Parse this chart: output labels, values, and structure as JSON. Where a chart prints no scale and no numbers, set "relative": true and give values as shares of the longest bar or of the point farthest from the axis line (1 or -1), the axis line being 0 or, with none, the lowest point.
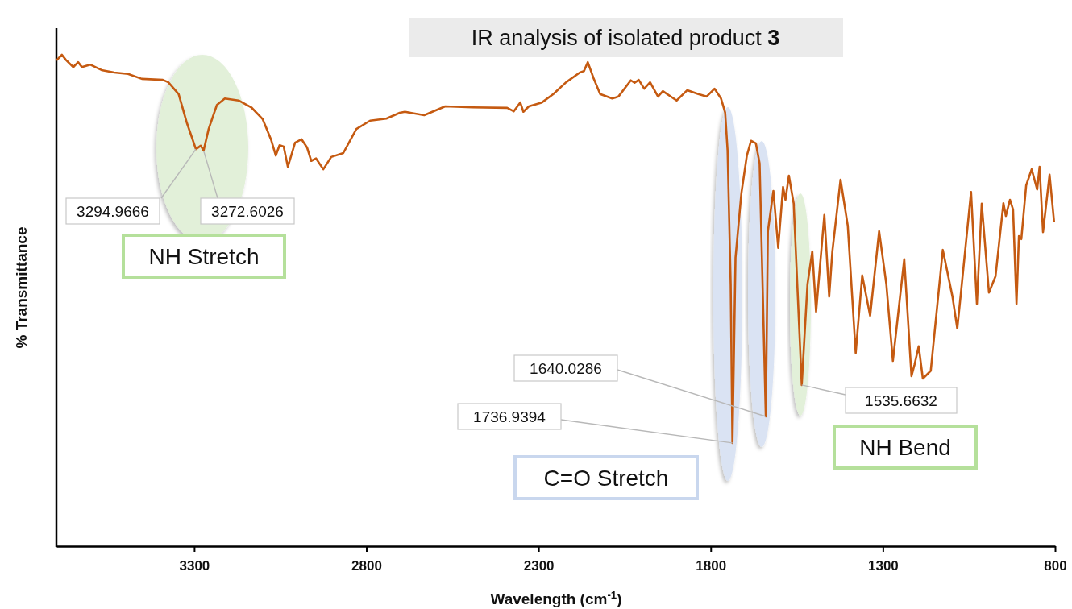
{
  "chart_data": {
    "type": "line",
    "title": "IR analysis of isolated product 3",
    "xlabel": "Wavelength (cm$^{-1}$)",
    "ylabel": "% Transmittance",
    "relative": true,
    "tick_labels": "x",
    "xlim": [
      3700,
      800
    ],
    "xticks": [
      3300,
      2800,
      2300,
      1800,
      1300,
      800
    ],
    "series": [
      {
        "color": "#c55a11",
        "x": [
          3698,
          3684,
          3673,
          3651,
          3637,
          3626,
          3602,
          3569,
          3532,
          3492,
          3452,
          3391,
          3375,
          3345,
          3321,
          3294.9666,
          3281,
          3272.6026,
          3258,
          3234,
          3211,
          3171,
          3134,
          3101,
          3077,
          3063,
          3052,
          3040,
          3028,
          3007,
          2988,
          2972,
          2960,
          2946,
          2925,
          2902,
          2867,
          2829,
          2789,
          2742,
          2703,
          2688,
          2632,
          2571,
          2492,
          2391,
          2372,
          2353,
          2344,
          2328,
          2290,
          2257,
          2220,
          2180,
          2168,
          2157,
          2140,
          2121,
          2086,
          2068,
          2032,
          2021,
          2009,
          1993,
          1976,
          1953,
          1939,
          1899,
          1868,
          1836,
          1812,
          1789,
          1770,
          1758,
          1751,
          1742,
          1736.9394,
          1728,
          1711,
          1695,
          1683,
          1669,
          1658,
          1640.0286,
          1634,
          1618,
          1604,
          1590,
          1583,
          1573,
          1559,
          1535.6632,
          1519,
          1505,
          1494,
          1470,
          1456,
          1447,
          1423,
          1402,
          1379,
          1360,
          1337,
          1311,
          1290,
          1271,
          1238,
          1217,
          1208,
          1196,
          1184,
          1161,
          1126,
          1098,
          1084,
          1072,
          1044,
          1027,
          1013,
          992,
          973,
          950,
          943,
          931,
          922,
          912,
          905,
          898,
          884,
          868,
          852,
          845,
          835,
          816,
          803
        ],
        "values": [
          0.99,
          1,
          0.99,
          0.975,
          0.985,
          0.975,
          0.98,
          0.969,
          0.964,
          0.961,
          0.951,
          0.949,
          0.944,
          0.92,
          0.861,
          0.808,
          0.815,
          0.805,
          0.849,
          0.898,
          0.911,
          0.907,
          0.893,
          0.869,
          0.828,
          0.795,
          0.816,
          0.813,
          0.772,
          0.821,
          0.828,
          0.811,
          0.784,
          0.789,
          0.767,
          0.792,
          0.8,
          0.849,
          0.866,
          0.87,
          0.882,
          0.884,
          0.877,
          0.895,
          0.893,
          0.892,
          0.885,
          0.903,
          0.884,
          0.895,
          0.903,
          0.92,
          0.944,
          0.964,
          0.967,
          0.985,
          0.952,
          0.92,
          0.911,
          0.915,
          0.948,
          0.943,
          0.949,
          0.931,
          0.944,
          0.915,
          0.926,
          0.907,
          0.928,
          0.92,
          0.915,
          0.931,
          0.911,
          0.882,
          0.805,
          0.533,
          0.21,
          0.587,
          0.718,
          0.795,
          0.825,
          0.82,
          0.779,
          0.264,
          0.641,
          0.723,
          0.607,
          0.731,
          0.705,
          0.754,
          0.697,
          0.328,
          0.533,
          0.6,
          0.477,
          0.674,
          0.508,
          0.598,
          0.746,
          0.652,
          0.393,
          0.551,
          0.469,
          0.641,
          0.533,
          0.377,
          0.584,
          0.346,
          0.37,
          0.407,
          0.341,
          0.357,
          0.603,
          0.508,
          0.443,
          0.525,
          0.721,
          0.493,
          0.697,
          0.516,
          0.549,
          0.698,
          0.672,
          0.705,
          0.685,
          0.493,
          0.631,
          0.625,
          0.734,
          0.767,
          0.726,
          0.772,
          0.639,
          0.756,
          0.661
        ]
      }
    ],
    "annotations": [
      {
        "text": "3294.9666",
        "x": 3294.9666,
        "y": 0.808
      },
      {
        "text": "3272.6026",
        "x": 3272.6026,
        "y": 0.805
      },
      "NH Stretch",
      {
        "text": "1640.0286",
        "x": 1640.0286,
        "y": 0.264
      },
      {
        "text": "1736.9394",
        "x": 1736.9394,
        "y": 0.21
      },
      "C=O Stretch",
      {
        "text": "1535.6632",
        "x": 1535.6632,
        "y": 0.328
      },
      "NH Bend"
    ]
  }
}
